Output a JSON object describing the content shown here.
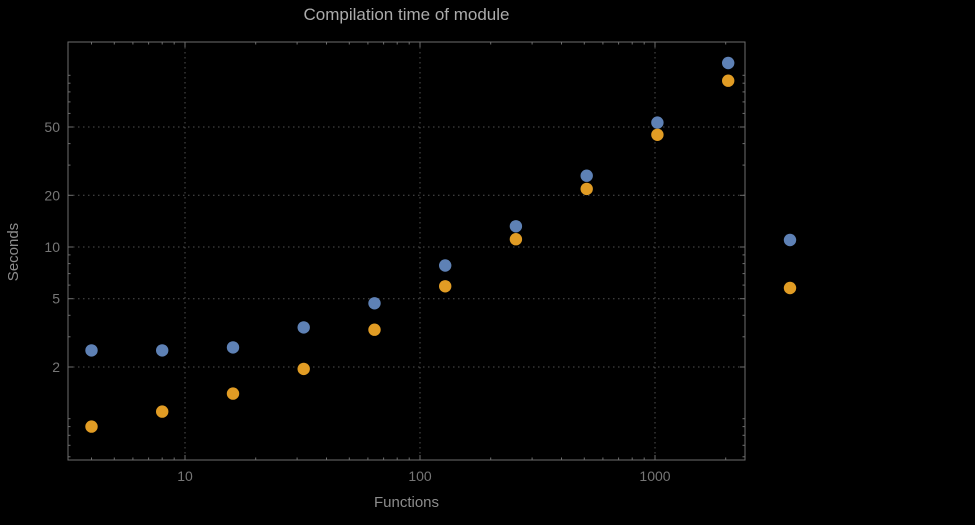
{
  "chart_data": {
    "type": "scatter",
    "title": "Compilation time of module",
    "xlabel": "Functions",
    "ylabel": "Seconds",
    "x_scale": "log",
    "y_scale": "log",
    "xlim": [
      3.2,
      2400
    ],
    "ylim": [
      0.58,
      155
    ],
    "grid": true,
    "grid_style": "dotted",
    "x_ticks": [
      10,
      100,
      1000
    ],
    "x_tick_labels": [
      "10",
      "100",
      "1000"
    ],
    "y_ticks": [
      2,
      5,
      10,
      20,
      50
    ],
    "y_tick_labels": [
      "2",
      "5",
      "10",
      "20",
      "50"
    ],
    "x": [
      4,
      8,
      16,
      32,
      64,
      128,
      256,
      512,
      1024,
      2048
    ],
    "series": [
      {
        "name": "series-1",
        "color": "#5e81b5",
        "values": [
          2.5,
          2.5,
          2.6,
          3.4,
          4.7,
          7.8,
          13.2,
          26,
          53,
          118
        ]
      },
      {
        "name": "series-2",
        "color": "#e19c24",
        "values": [
          0.9,
          1.1,
          1.4,
          1.95,
          3.3,
          5.9,
          11.1,
          21.8,
          45,
          93
        ]
      }
    ],
    "legend_markers": [
      {
        "series": "series-1",
        "color": "#5e81b5",
        "label": ""
      },
      {
        "series": "series-2",
        "color": "#e19c24",
        "label": ""
      }
    ]
  },
  "colors": {
    "background": "#000000",
    "frame": "#6e6e6e",
    "grid": "#515151",
    "tick_label": "#767676",
    "axis_label": "#8c8c8c",
    "title": "#ababab",
    "series1": "#5e81b5",
    "series2": "#e19c24"
  }
}
